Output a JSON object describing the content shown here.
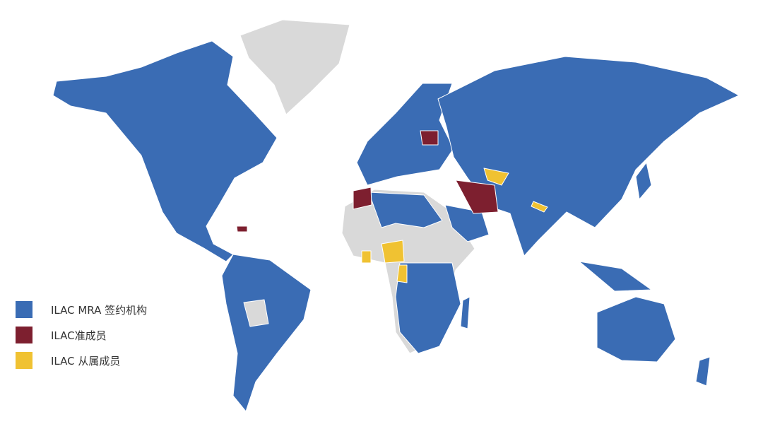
{
  "colors": {
    "signatory": "#3a6cb4",
    "associate": "#7d1f2f",
    "affiliate": "#f0c232",
    "other": "#d9d9d9"
  },
  "legend": [
    {
      "label": "ILAC MRA 签约机构",
      "color": "#3a6cb4"
    },
    {
      "label": "ILAC准成员",
      "color": "#7d1f2f"
    },
    {
      "label": "ILAC 从属成员",
      "color": "#f0c232"
    }
  ]
}
